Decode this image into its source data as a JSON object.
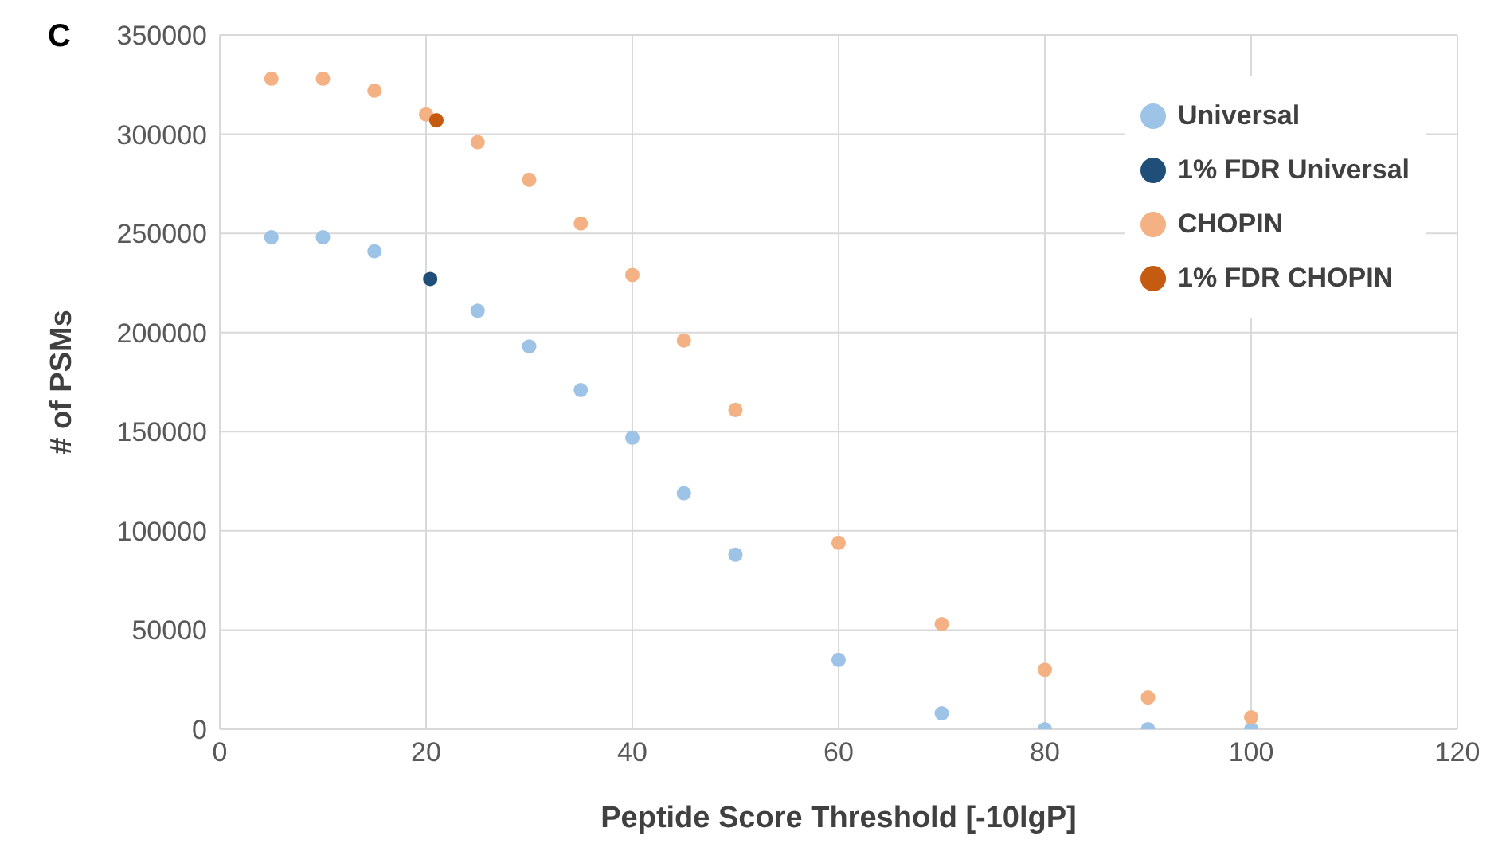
{
  "chart_data": {
    "type": "scatter",
    "title": "C",
    "xlabel": "Peptide Score Threshold [-10lgP]",
    "ylabel": "# of PSMs",
    "series": [
      {
        "name": "Universal",
        "color": "#9dc3e6",
        "x": [
          5,
          10,
          15,
          25,
          30,
          35,
          40,
          45,
          50,
          60,
          70,
          80,
          90,
          100
        ],
        "values": [
          248000,
          248000,
          241000,
          211000,
          193000,
          171000,
          147000,
          119000,
          88000,
          35000,
          8000,
          0,
          0,
          0
        ]
      },
      {
        "name": "1% FDR Universal",
        "color": "#1f4e79",
        "x": [
          20.4
        ],
        "values": [
          227000
        ]
      },
      {
        "name": "CHOPIN",
        "color": "#f4b183",
        "x": [
          5,
          10,
          15,
          20,
          25,
          30,
          35,
          40,
          45,
          50,
          60,
          70,
          80,
          90,
          100
        ],
        "values": [
          328000,
          328000,
          322000,
          310000,
          296000,
          277000,
          255000,
          229000,
          196000,
          161000,
          94000,
          53000,
          30000,
          16000,
          6000
        ]
      },
      {
        "name": "1% FDR CHOPIN",
        "color": "#c55a11",
        "x": [
          21
        ],
        "values": [
          307000
        ]
      }
    ],
    "xlim": [
      0,
      120
    ],
    "xticks": [
      0,
      20,
      40,
      60,
      80,
      100,
      120
    ],
    "ylim": [
      0,
      350000
    ],
    "yticks": [
      0,
      50000,
      100000,
      150000,
      200000,
      250000,
      300000,
      350000
    ],
    "grid": true,
    "legend": "top right",
    "marker": "circle"
  }
}
